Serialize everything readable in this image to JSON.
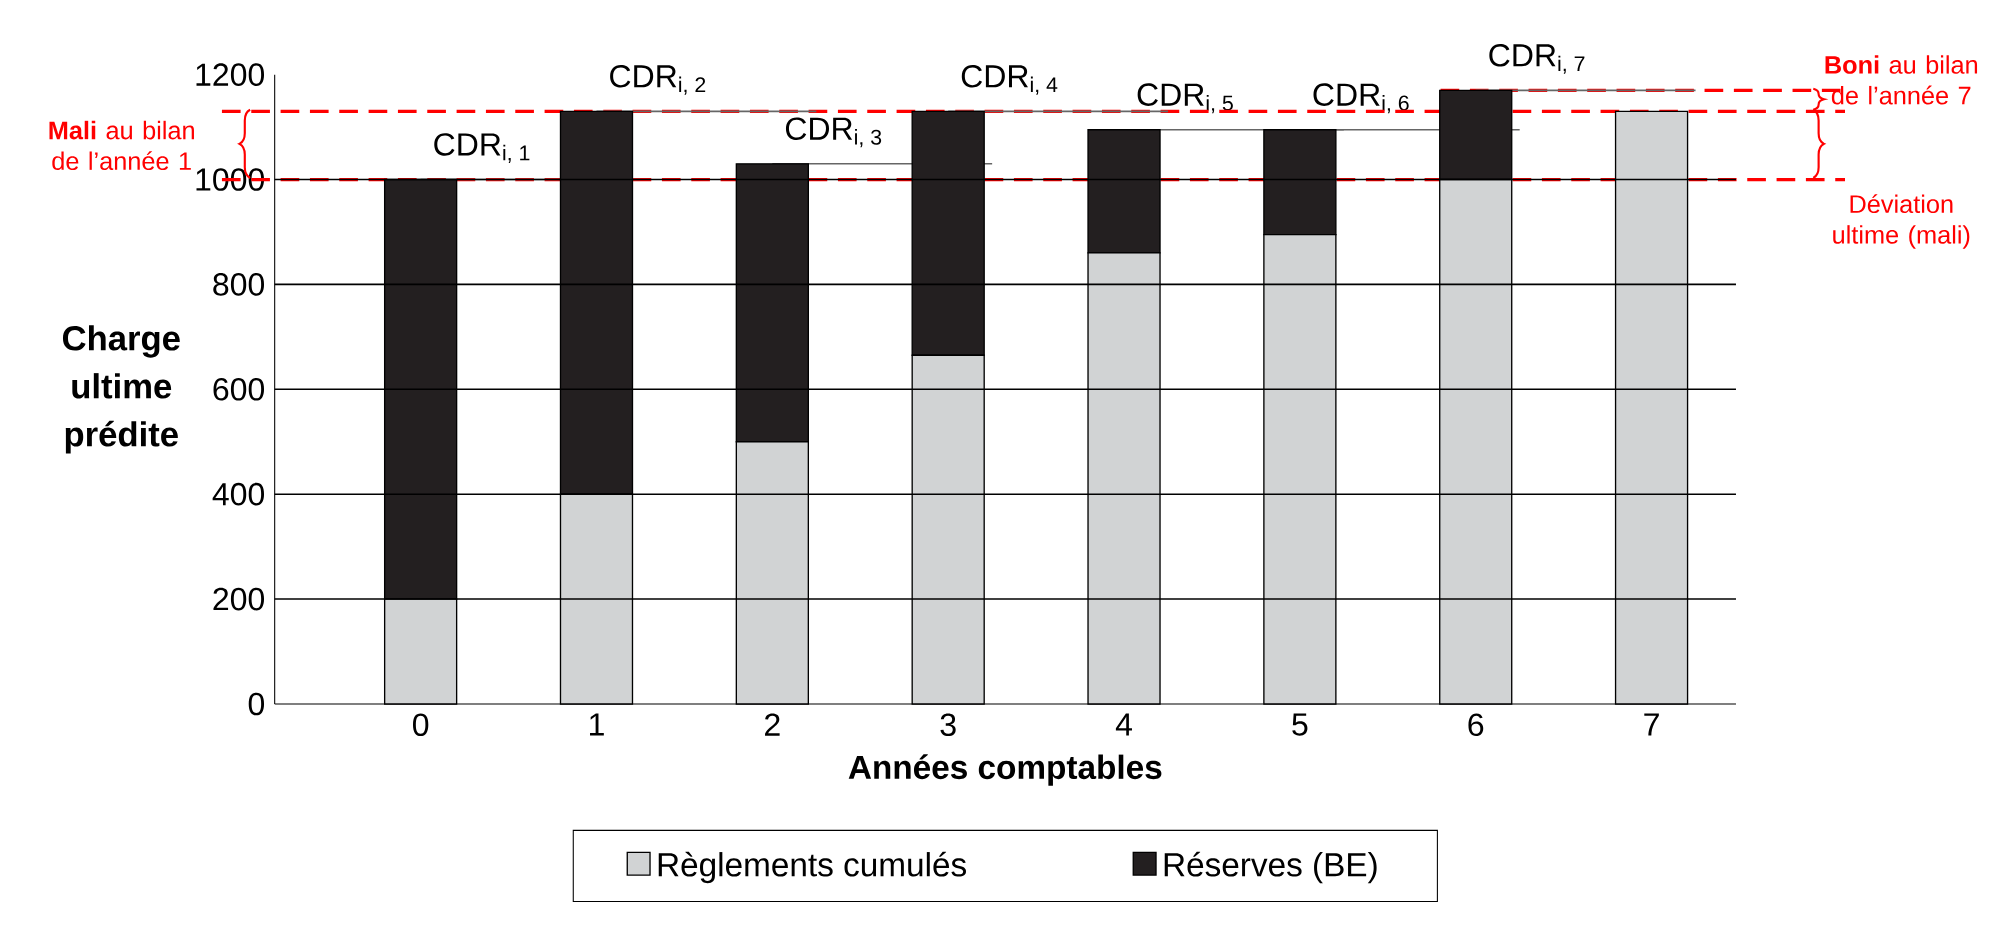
{
  "chart_data": {
    "type": "bar",
    "stacked": true,
    "xlabel": "Années comptables",
    "ylabel": "Charge ultime prédite",
    "categories": [
      "0",
      "1",
      "2",
      "3",
      "4",
      "5",
      "6",
      "7"
    ],
    "series": [
      {
        "name": "Règlements cumulés",
        "color": "#d1d3d4",
        "values": [
          200,
          400,
          500,
          665,
          860,
          895,
          1000,
          1130
        ]
      },
      {
        "name": "Réserves (BE)",
        "color": "#231f20",
        "values": [
          800,
          730,
          530,
          465,
          235,
          200,
          170,
          0
        ]
      }
    ],
    "ylim": [
      0,
      1200
    ],
    "yticks": [
      0,
      200,
      400,
      600,
      800,
      1000,
      1200
    ],
    "grid": "y",
    "legend": "bottom",
    "ref_lines": [
      {
        "axis": "y",
        "value": 1000,
        "color": "#ff0000",
        "line_style": "dashed"
      },
      {
        "axis": "y",
        "value": 1130,
        "color": "#ff0000",
        "line_style": "dashed"
      },
      {
        "axis": "y",
        "value": 1170,
        "color": "#ff0000",
        "line_style": "dashed"
      }
    ],
    "annotations": [
      {
        "text": "CDR$_{i, 1}$",
        "x": "0",
        "y": 1000
      },
      {
        "text": "CDR$_{i, 2}$",
        "x": "1",
        "y": 1130
      },
      {
        "text": "CDR$_{i, 3}$",
        "x": "2",
        "y": 1030
      },
      {
        "text": "CDR$_{i, 4}$",
        "x": "3",
        "y": 1130
      },
      {
        "text": "CDR$_{i, 5}$",
        "x": "4",
        "y": 1095
      },
      {
        "text": "CDR$_{i, 6}$",
        "x": "5",
        "y": 1095
      },
      {
        "text": "CDR$_{i, 7}$",
        "x": "6",
        "y": 1170
      },
      "**Mali** au bilan de l’année 1",
      "**Boni** au bilan de l’année 7",
      "Déviation ultime (mali)"
    ]
  }
}
